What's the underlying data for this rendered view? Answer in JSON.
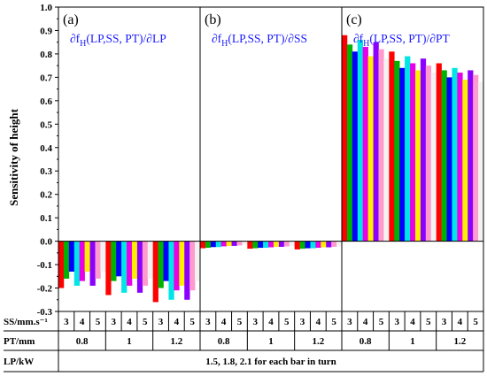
{
  "chart_data": {
    "type": "bar",
    "ylabel": "Sensitivity of height",
    "ylim": [
      -0.3,
      1.0
    ],
    "yticks": [
      "-0.3",
      "-0.2",
      "-0.1",
      "0.0",
      "0.1",
      "0.2",
      "0.3",
      "0.4",
      "0.5",
      "0.6",
      "0.7",
      "0.8",
      "0.9",
      "1.0"
    ],
    "bar_colors": [
      "#ff0000",
      "#00b300",
      "#0000ff",
      "#00e5e5",
      "#e800e8",
      "#ffee00",
      "#8b00ff",
      "#ff9acd",
      "#f2f2f2"
    ],
    "panels": [
      {
        "label": "(a)",
        "formula": "∂fH(LP,SS, PT)/∂LP",
        "formula_main": "∂f",
        "formula_sub": "H",
        "formula_rest": "(LP,SS, PT)/∂LP",
        "groups": [
          {
            "pt": "0.8",
            "values": [
              -0.2,
              -0.16,
              -0.13,
              -0.19,
              -0.17,
              -0.13,
              -0.19,
              -0.16,
              -0.13
            ]
          },
          {
            "pt": "1",
            "values": [
              -0.23,
              -0.17,
              -0.15,
              -0.22,
              -0.19,
              -0.16,
              -0.22,
              -0.19,
              -0.16
            ]
          },
          {
            "pt": "1.2",
            "values": [
              -0.26,
              -0.2,
              -0.17,
              -0.25,
              -0.21,
              -0.19,
              -0.25,
              -0.21,
              -0.17
            ]
          }
        ]
      },
      {
        "label": "(b)",
        "formula": "∂fH(LP,SS, PT)/∂SS",
        "formula_main": "∂f",
        "formula_sub": "H",
        "formula_rest": "(LP,SS, PT)/∂SS",
        "groups": [
          {
            "pt": "0.8",
            "values": [
              -0.03,
              -0.028,
              -0.025,
              -0.025,
              -0.022,
              -0.02,
              -0.02,
              -0.018,
              -0.015
            ]
          },
          {
            "pt": "1",
            "values": [
              -0.032,
              -0.03,
              -0.028,
              -0.028,
              -0.026,
              -0.024,
              -0.024,
              -0.022,
              -0.02
            ]
          },
          {
            "pt": "1.2",
            "values": [
              -0.035,
              -0.032,
              -0.03,
              -0.03,
              -0.028,
              -0.026,
              -0.026,
              -0.024,
              -0.022
            ]
          }
        ]
      },
      {
        "label": "(c)",
        "formula": "∂fH(LP,SS, PT)/∂PT",
        "formula_main": "∂f",
        "formula_sub": "H",
        "formula_rest": "(LP,SS, PT)/∂PT",
        "groups": [
          {
            "pt": "0.8",
            "values": [
              0.88,
              0.84,
              0.81,
              0.86,
              0.83,
              0.79,
              0.85,
              0.82,
              0.78
            ]
          },
          {
            "pt": "1",
            "values": [
              0.81,
              0.77,
              0.74,
              0.79,
              0.76,
              0.73,
              0.78,
              0.75,
              0.72
            ]
          },
          {
            "pt": "1.2",
            "values": [
              0.76,
              0.73,
              0.7,
              0.74,
              0.72,
              0.69,
              0.73,
              0.71,
              0.68
            ]
          }
        ]
      }
    ],
    "table": {
      "ss_label": "SS/mm.s⁻¹",
      "ss_values": [
        "3",
        "4",
        "5"
      ],
      "pt_label": "PT/mm",
      "pt_values": [
        "0.8",
        "1",
        "1.2"
      ],
      "lp_label": "LP/kW",
      "lp_note": "1.5, 1.8, 2.1 for each bar in turn"
    }
  }
}
